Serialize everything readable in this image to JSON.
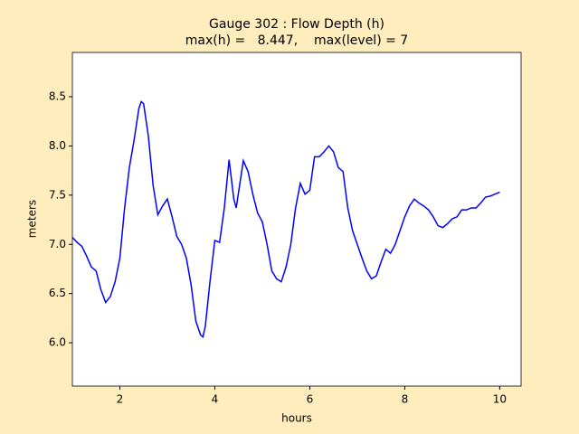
{
  "chart_data": {
    "type": "line",
    "title": "Gauge 302 : Flow Depth (h)",
    "subtitle": "max(h) =   8.447,    max(level) = 7",
    "x_label": "hours",
    "y_label": "meters",
    "xlim": [
      1,
      10.45
    ],
    "ylim": [
      5.56,
      8.95
    ],
    "xticks": [
      2,
      4,
      6,
      8,
      10
    ],
    "yticks": [
      {
        "value": 6,
        "label": "6.0"
      },
      6.5,
      {
        "value": 7,
        "label": "7.0"
      },
      7.5,
      {
        "value": 8,
        "label": "8.0"
      },
      8.5
    ],
    "grid": false,
    "series": [
      {
        "color": "#0000ff",
        "x": [
          1.0,
          1.1,
          1.2,
          1.3,
          1.4,
          1.5,
          1.6,
          1.7,
          1.8,
          1.9,
          2.0,
          2.1,
          2.2,
          2.3,
          2.4,
          2.45,
          2.5,
          2.6,
          2.7,
          2.8,
          2.9,
          3.0,
          3.1,
          3.2,
          3.3,
          3.4,
          3.5,
          3.6,
          3.7,
          3.75,
          3.8,
          3.9,
          4.0,
          4.1,
          4.2,
          4.3,
          4.4,
          4.45,
          4.6,
          4.7,
          4.8,
          4.9,
          5.0,
          5.1,
          5.2,
          5.3,
          5.4,
          5.5,
          5.6,
          5.7,
          5.8,
          5.9,
          6.0,
          6.1,
          6.2,
          6.3,
          6.4,
          6.5,
          6.6,
          6.7,
          6.8,
          6.9,
          7.0,
          7.1,
          7.2,
          7.3,
          7.4,
          7.5,
          7.6,
          7.7,
          7.8,
          7.9,
          8.0,
          8.1,
          8.2,
          8.3,
          8.4,
          8.5,
          8.6,
          8.7,
          8.8,
          8.9,
          9.0,
          9.1,
          9.2,
          9.3,
          9.4,
          9.5,
          9.6,
          9.7,
          9.8,
          9.9,
          10.0
        ],
        "values": [
          7.07,
          7.02,
          6.98,
          6.88,
          6.77,
          6.73,
          6.54,
          6.41,
          6.47,
          6.62,
          6.86,
          7.37,
          7.78,
          8.06,
          8.38,
          8.45,
          8.43,
          8.1,
          7.6,
          7.3,
          7.39,
          7.46,
          7.28,
          7.08,
          7.0,
          6.86,
          6.59,
          6.22,
          6.08,
          6.06,
          6.17,
          6.63,
          7.04,
          7.02,
          7.37,
          7.86,
          7.46,
          7.37,
          7.85,
          7.74,
          7.51,
          7.32,
          7.23,
          7.0,
          6.73,
          6.65,
          6.62,
          6.77,
          7.0,
          7.37,
          7.62,
          7.51,
          7.55,
          7.89,
          7.89,
          7.94,
          8.0,
          7.94,
          7.78,
          7.74,
          7.37,
          7.14,
          7.0,
          6.86,
          6.73,
          6.65,
          6.68,
          6.82,
          6.95,
          6.91,
          7.0,
          7.14,
          7.28,
          7.39,
          7.46,
          7.42,
          7.39,
          7.35,
          7.28,
          7.19,
          7.17,
          7.21,
          7.26,
          7.28,
          7.35,
          7.35,
          7.37,
          7.37,
          7.42,
          7.48,
          7.49,
          7.51,
          7.53
        ]
      }
    ]
  }
}
